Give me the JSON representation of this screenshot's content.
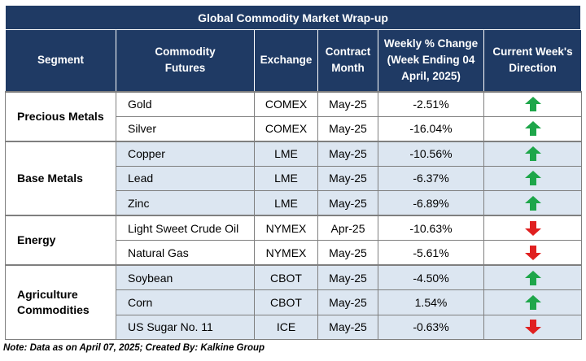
{
  "title": "Global Commodity Market Wrap-up",
  "headers": {
    "segment": "Segment",
    "futures_line1": "Commodity",
    "futures_line2": "Futures",
    "exchange": "Exchange",
    "contract_line1": "Contract",
    "contract_line2": "Month",
    "weekly_line1": "Weekly % Change",
    "weekly_line2": "(Week Ending  04",
    "weekly_line3": "April, 2025)",
    "direction_line1": "Current Week's",
    "direction_line2": "Direction"
  },
  "segments": {
    "precious": "Precious Metals",
    "base": "Base Metals",
    "energy": "Energy",
    "agri_line1": "Agriculture",
    "agri_line2": "Commodities"
  },
  "rows": [
    {
      "commodity": "Gold",
      "exchange": "COMEX",
      "month": "May-25",
      "change": "-2.51%",
      "direction": "up"
    },
    {
      "commodity": "Silver",
      "exchange": "COMEX",
      "month": "May-25",
      "change": "-16.04%",
      "direction": "up"
    },
    {
      "commodity": "Copper",
      "exchange": "LME",
      "month": "May-25",
      "change": "-10.56%",
      "direction": "up"
    },
    {
      "commodity": "Lead",
      "exchange": "LME",
      "month": "May-25",
      "change": "-6.37%",
      "direction": "up"
    },
    {
      "commodity": "Zinc",
      "exchange": "LME",
      "month": "May-25",
      "change": "-6.89%",
      "direction": "up"
    },
    {
      "commodity": "Light Sweet Crude Oil",
      "exchange": "NYMEX",
      "month": "Apr-25",
      "change": "-10.63%",
      "direction": "down"
    },
    {
      "commodity": "Natural Gas",
      "exchange": "NYMEX",
      "month": "May-25",
      "change": "-5.61%",
      "direction": "down"
    },
    {
      "commodity": "Soybean",
      "exchange": "CBOT",
      "month": "May-25",
      "change": "-4.50%",
      "direction": "up"
    },
    {
      "commodity": "Corn",
      "exchange": "CBOT",
      "month": "May-25",
      "change": "1.54%",
      "direction": "up"
    },
    {
      "commodity": "US Sugar No. 11",
      "exchange": "ICE",
      "month": "May-25",
      "change": "-0.63%",
      "direction": "down"
    }
  ],
  "colors": {
    "header_bg": "#1f3a64",
    "stripe": "#dce6f1",
    "up_arrow": "#1ea64a",
    "down_arrow": "#e02020"
  },
  "note": "Note: Data as on April 07, 2025; Created By: Kalkine Group"
}
